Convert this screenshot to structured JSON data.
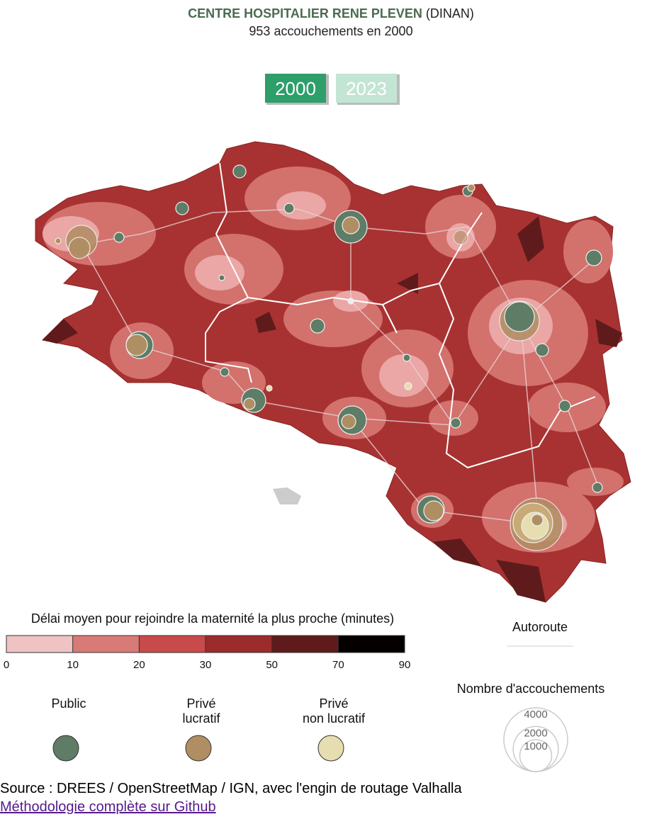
{
  "header": {
    "title": "CENTRE HOSPITALIER RENE PLEVEN",
    "title_suffix": "(DINAN)",
    "subtitle": "953 accouchements en 2000"
  },
  "year_buttons": [
    {
      "label": "2000",
      "active": true,
      "color": "#2e9e6a"
    },
    {
      "label": "2023",
      "active": false,
      "color": "#c3e5d4"
    }
  ],
  "legend": {
    "delay": {
      "title": "Délai moyen pour rejoindre la maternité la plus proche (minutes)",
      "ticks": [
        0,
        10,
        20,
        30,
        50,
        70,
        90
      ],
      "colors": [
        "#efc3c3",
        "#d87a76",
        "#c84a4a",
        "#9c2b2b",
        "#5f1b1b",
        "#050000"
      ]
    },
    "road": {
      "label": "Autoroute"
    },
    "types": [
      {
        "label": [
          "Public"
        ],
        "color": "#5e7c66"
      },
      {
        "label": [
          "Privé",
          "lucratif"
        ],
        "color": "#b08e63"
      },
      {
        "label": [
          "Privé",
          "non lucratif"
        ],
        "color": "#e6ddb0"
      }
    ],
    "size": {
      "title": "Nombre d'accouchements",
      "values": [
        4000,
        2000,
        1000
      ]
    }
  },
  "footer": {
    "source": "Source : DREES / OpenStreetMap / IGN, avec l'engin de routage Valhalla",
    "link": "Méthodologie complète sur Github"
  }
}
